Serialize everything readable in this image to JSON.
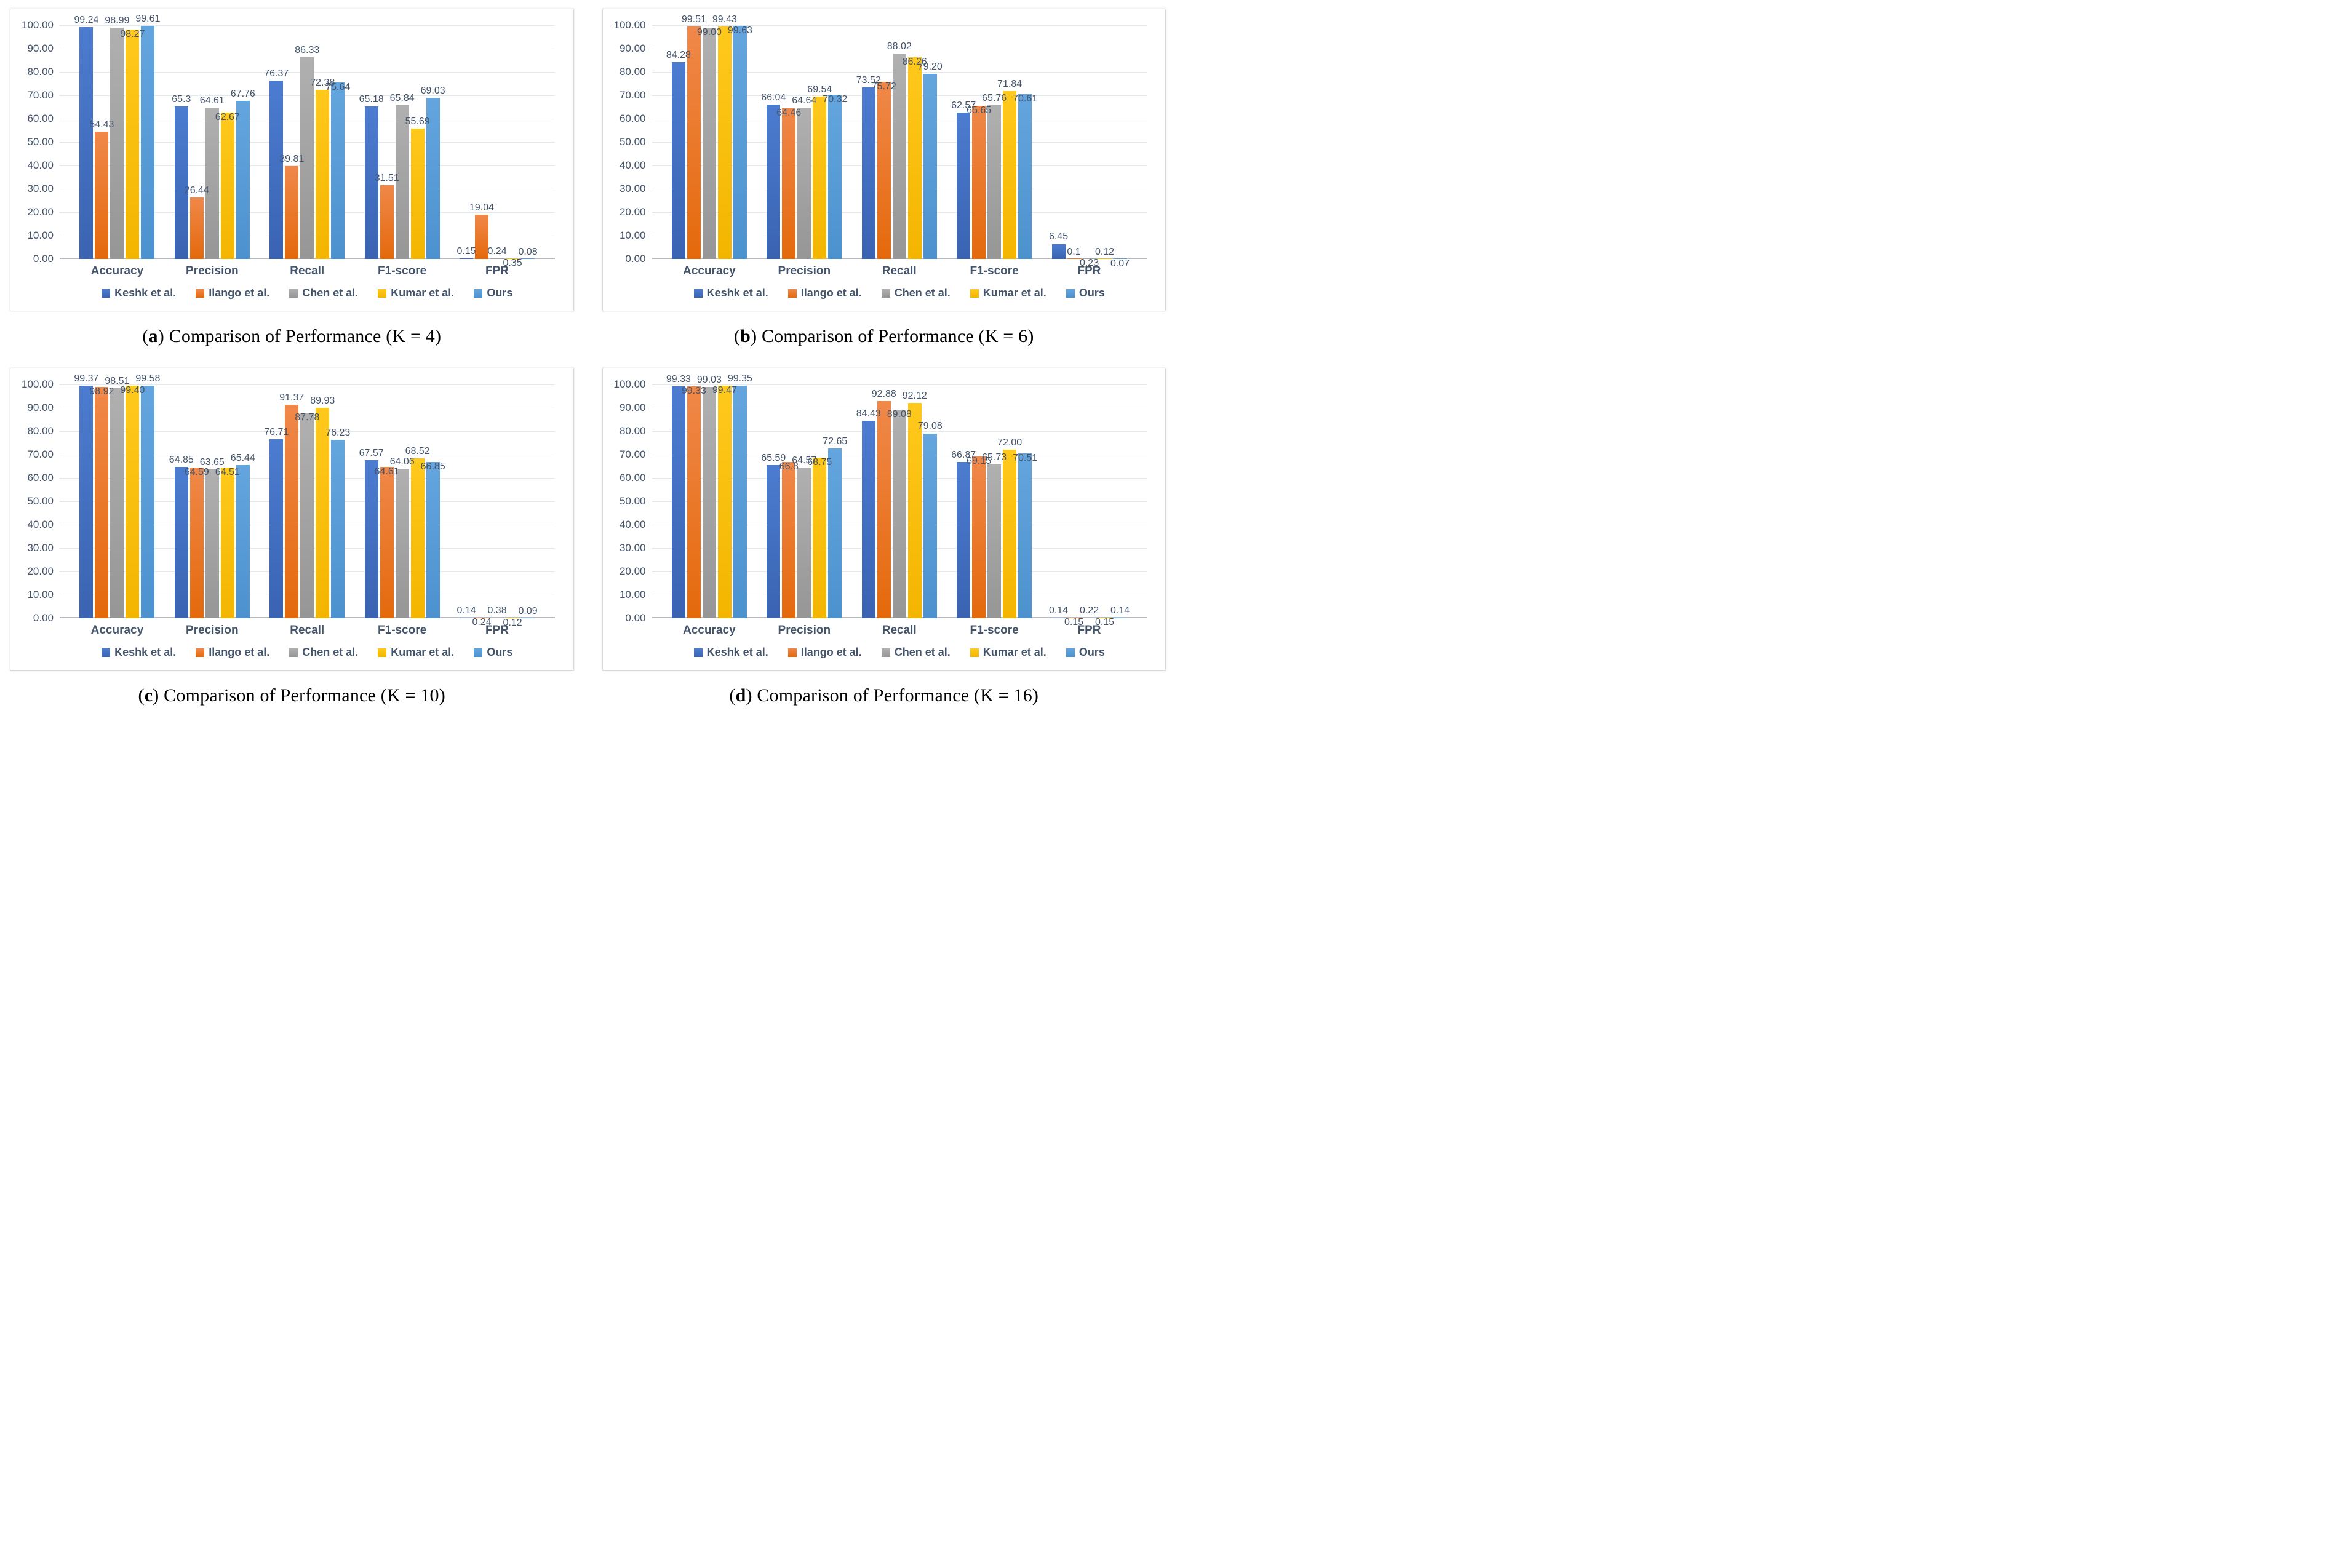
{
  "figure": {
    "y_axis_ticks": [
      "100.00",
      "90.00",
      "80.00",
      "70.00",
      "60.00",
      "50.00",
      "40.00",
      "30.00",
      "20.00",
      "10.00",
      "0.00"
    ],
    "categories": [
      "Accuracy",
      "Precision",
      "Recall",
      "F1-score",
      "FPR"
    ],
    "series_styles": [
      {
        "name": "Keshk et al.",
        "color": "#4472C4",
        "gradient_top": "#4C7CD0",
        "gradient_bottom": "#3A63B2"
      },
      {
        "name": "Ilango et al.",
        "color": "#ED7D31",
        "gradient_top": "#F0884A",
        "gradient_bottom": "#E4690B"
      },
      {
        "name": "Chen et al.",
        "color": "#A5A5A5",
        "gradient_top": "#B0B0B0",
        "gradient_bottom": "#969696"
      },
      {
        "name": "Kumar et al.",
        "color": "#FFC000",
        "gradient_top": "#FFC91C",
        "gradient_bottom": "#F3B500"
      },
      {
        "name": "Ours",
        "color": "#5B9BD5",
        "gradient_top": "#64A5DE",
        "gradient_bottom": "#4C92CF"
      }
    ],
    "text_color": "#44546A"
  },
  "chart_data": [
    {
      "type": "bar",
      "panel": "a",
      "caption_marker": "a",
      "caption_text": "Comparison of Performance (K = 4)",
      "categories": [
        "Accuracy",
        "Precision",
        "Recall",
        "F1-score",
        "FPR"
      ],
      "ylim": [
        0,
        100
      ],
      "ytick_step": 10,
      "grid": true,
      "legend_position": "bottom",
      "series": [
        {
          "name": "Keshk et al.",
          "values": [
            99.24,
            65.3,
            76.37,
            65.18,
            0.15
          ],
          "labels": [
            "99.24",
            "65.3",
            "76.37",
            "65.18",
            "0.15"
          ]
        },
        {
          "name": "Ilango et al.",
          "values": [
            54.43,
            26.44,
            39.81,
            31.51,
            19.04
          ],
          "labels": [
            "54.43",
            "26.44",
            "39.81",
            "31.51",
            "19.04"
          ]
        },
        {
          "name": "Chen et al.",
          "values": [
            98.99,
            64.61,
            86.33,
            65.84,
            0.24
          ],
          "labels": [
            "98.99",
            "64.61",
            "86.33",
            "65.84",
            "0.24"
          ]
        },
        {
          "name": "Kumar et al.",
          "values": [
            98.27,
            62.67,
            72.38,
            55.69,
            0.35
          ],
          "labels": [
            "98.27",
            "62.67",
            "72.38",
            "55.69",
            "0.35"
          ]
        },
        {
          "name": "Ours",
          "values": [
            99.61,
            67.76,
            75.64,
            69.03,
            0.08
          ],
          "labels": [
            "99.61",
            "67.76",
            "75.64",
            "69.03",
            "0.08"
          ]
        }
      ]
    },
    {
      "type": "bar",
      "panel": "b",
      "caption_marker": "b",
      "caption_text": "Comparison of Performance (K = 6)",
      "categories": [
        "Accuracy",
        "Precision",
        "Recall",
        "F1-score",
        "FPR"
      ],
      "ylim": [
        0,
        100
      ],
      "ytick_step": 10,
      "grid": true,
      "legend_position": "bottom",
      "series": [
        {
          "name": "Keshk et al.",
          "values": [
            84.28,
            66.04,
            73.52,
            62.57,
            6.45
          ],
          "labels": [
            "84.28",
            "66.04",
            "73.52",
            "62.57",
            "6.45"
          ]
        },
        {
          "name": "Ilango et al.",
          "values": [
            99.51,
            64.46,
            75.72,
            65.65,
            0.1
          ],
          "labels": [
            "99.51",
            "64.46",
            "75.72",
            "65.65",
            "0.1"
          ]
        },
        {
          "name": "Chen et al.",
          "values": [
            99.0,
            64.64,
            88.02,
            65.76,
            0.23
          ],
          "labels": [
            "99.00",
            "64.64",
            "88.02",
            "65.76",
            "0.23"
          ]
        },
        {
          "name": "Kumar et al.",
          "values": [
            99.43,
            69.54,
            86.26,
            71.84,
            0.12
          ],
          "labels": [
            "99.43",
            "69.54",
            "86.26",
            "71.84",
            "0.12"
          ]
        },
        {
          "name": "Ours",
          "values": [
            99.63,
            70.32,
            79.2,
            70.61,
            0.07
          ],
          "labels": [
            "99.63",
            "70.32",
            "79.20",
            "70.61",
            "0.07"
          ]
        }
      ]
    },
    {
      "type": "bar",
      "panel": "c",
      "caption_marker": "c",
      "caption_text": "Comparison of Performance (K = 10)",
      "categories": [
        "Accuracy",
        "Precision",
        "Recall",
        "F1-score",
        "FPR"
      ],
      "ylim": [
        0,
        100
      ],
      "ytick_step": 10,
      "grid": true,
      "legend_position": "bottom",
      "series": [
        {
          "name": "Keshk et al.",
          "values": [
            99.37,
            64.85,
            76.71,
            67.57,
            0.14
          ],
          "labels": [
            "99.37",
            "64.85",
            "76.71",
            "67.57",
            "0.14"
          ]
        },
        {
          "name": "Ilango et al.",
          "values": [
            98.92,
            64.59,
            91.37,
            64.61,
            0.24
          ],
          "labels": [
            "98.92",
            "64.59",
            "91.37",
            "64.61",
            "0.24"
          ]
        },
        {
          "name": "Chen et al.",
          "values": [
            98.51,
            63.65,
            87.78,
            64.06,
            0.38
          ],
          "labels": [
            "98.51",
            "63.65",
            "87.78",
            "64.06",
            "0.38"
          ]
        },
        {
          "name": "Kumar et al.",
          "values": [
            99.4,
            64.51,
            89.93,
            68.52,
            0.12
          ],
          "labels": [
            "99.40",
            "64.51",
            "89.93",
            "68.52",
            "0.12"
          ]
        },
        {
          "name": "Ours",
          "values": [
            99.58,
            65.44,
            76.23,
            66.85,
            0.09
          ],
          "labels": [
            "99.58",
            "65.44",
            "76.23",
            "66.85",
            "0.09"
          ]
        }
      ]
    },
    {
      "type": "bar",
      "panel": "d",
      "caption_marker": "d",
      "caption_text": "Comparison of Performance (K = 16)",
      "categories": [
        "Accuracy",
        "Precision",
        "Recall",
        "F1-score",
        "FPR"
      ],
      "ylim": [
        0,
        100
      ],
      "ytick_step": 10,
      "grid": true,
      "legend_position": "bottom",
      "series": [
        {
          "name": "Keshk et al.",
          "values": [
            99.33,
            65.59,
            84.43,
            66.87,
            0.14
          ],
          "labels": [
            "99.33",
            "65.59",
            "84.43",
            "66.87",
            "0.14"
          ]
        },
        {
          "name": "Ilango et al.",
          "values": [
            99.33,
            66.8,
            92.88,
            69.15,
            0.15
          ],
          "labels": [
            "99.33",
            "66.8",
            "92.88",
            "69.15",
            "0.15"
          ]
        },
        {
          "name": "Chen et al.",
          "values": [
            99.03,
            64.57,
            89.08,
            65.73,
            0.22
          ],
          "labels": [
            "99.03",
            "64.57",
            "89.08",
            "65.73",
            "0.22"
          ]
        },
        {
          "name": "Kumar et al.",
          "values": [
            99.47,
            68.75,
            92.12,
            72.0,
            0.15
          ],
          "labels": [
            "99.47",
            "68.75",
            "92.12",
            "72.00",
            "0.15"
          ]
        },
        {
          "name": "Ours",
          "values": [
            99.35,
            72.65,
            79.08,
            70.51,
            0.14
          ],
          "labels": [
            "99.35",
            "72.65",
            "79.08",
            "70.51",
            "0.14"
          ]
        }
      ]
    }
  ]
}
